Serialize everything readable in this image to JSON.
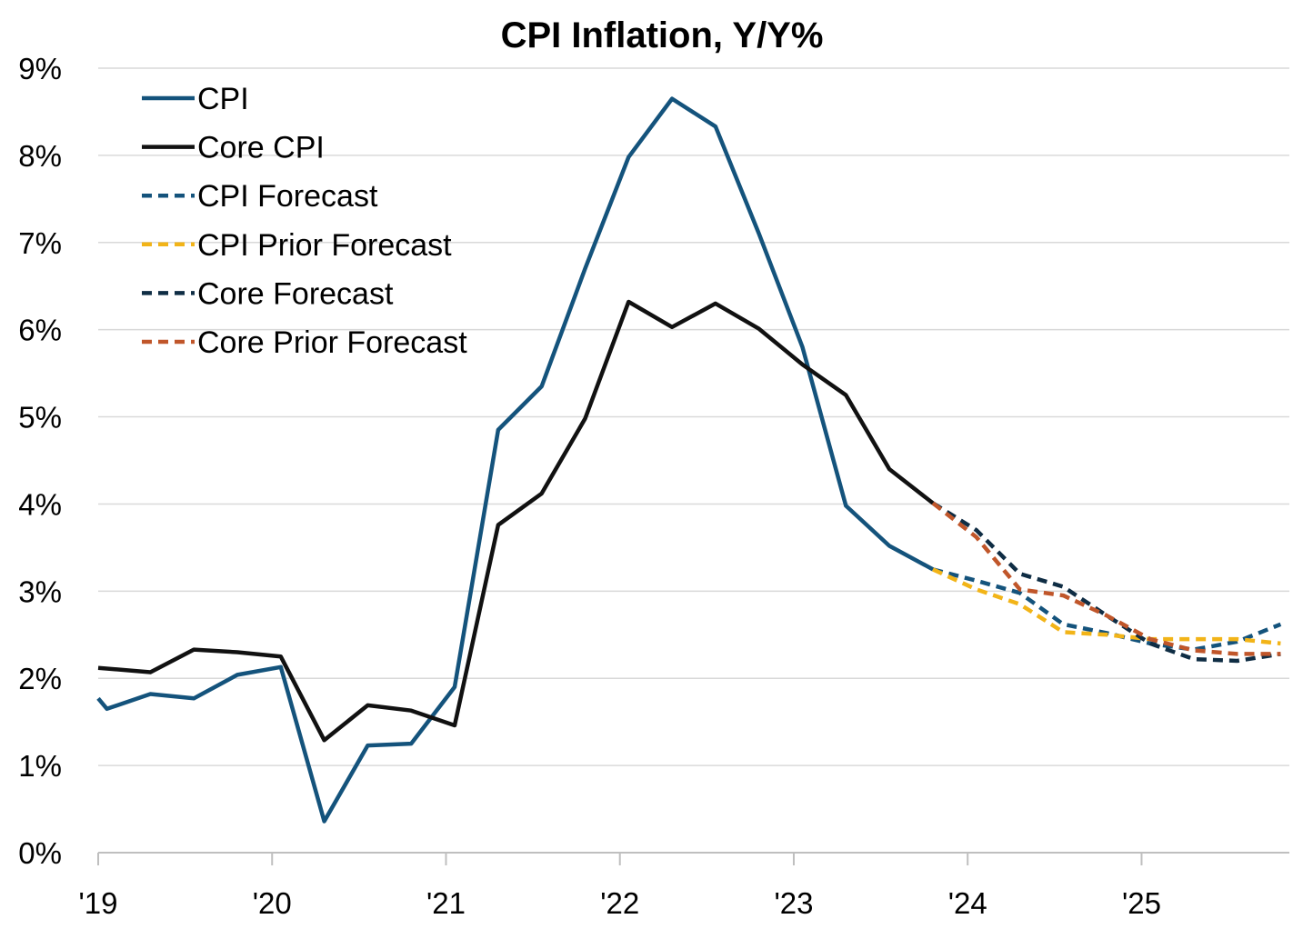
{
  "chart_data": {
    "type": "line",
    "title": "CPI Inflation, Y/Y%",
    "xlabel": "",
    "ylabel": "",
    "xlim": [
      2019.0,
      2025.85
    ],
    "ylim": [
      0,
      9
    ],
    "y_ticks": [
      0,
      1,
      2,
      3,
      4,
      5,
      6,
      7,
      8,
      9
    ],
    "y_tick_labels": [
      "0%",
      "1%",
      "2%",
      "3%",
      "4%",
      "5%",
      "6%",
      "7%",
      "8%",
      "9%"
    ],
    "x_ticks": [
      2019,
      2020,
      2021,
      2022,
      2023,
      2024,
      2025
    ],
    "x_tick_labels": [
      "'19",
      "'20",
      "'21",
      "'22",
      "'23",
      "'24",
      "'25"
    ],
    "grid": "horizontal",
    "legend_position": "top-left",
    "series": [
      {
        "name": "CPI",
        "color": "#14537c",
        "dash": "solid",
        "points": [
          [
            2019.0,
            1.77
          ],
          [
            2019.05,
            1.65
          ],
          [
            2019.3,
            1.82
          ],
          [
            2019.55,
            1.77
          ],
          [
            2019.8,
            2.04
          ],
          [
            2020.05,
            2.13
          ],
          [
            2020.3,
            0.36
          ],
          [
            2020.55,
            1.23
          ],
          [
            2020.8,
            1.25
          ],
          [
            2021.05,
            1.9
          ],
          [
            2021.3,
            4.85
          ],
          [
            2021.55,
            5.35
          ],
          [
            2021.8,
            6.7
          ],
          [
            2022.05,
            7.98
          ],
          [
            2022.3,
            8.65
          ],
          [
            2022.55,
            8.33
          ],
          [
            2022.8,
            7.1
          ],
          [
            2023.05,
            5.8
          ],
          [
            2023.3,
            3.98
          ],
          [
            2023.55,
            3.52
          ],
          [
            2023.8,
            3.25
          ]
        ]
      },
      {
        "name": "Core CPI",
        "color": "#111111",
        "dash": "solid",
        "points": [
          [
            2019.0,
            2.12
          ],
          [
            2019.3,
            2.07
          ],
          [
            2019.55,
            2.33
          ],
          [
            2019.8,
            2.3
          ],
          [
            2020.05,
            2.25
          ],
          [
            2020.3,
            1.29
          ],
          [
            2020.55,
            1.69
          ],
          [
            2020.8,
            1.63
          ],
          [
            2021.05,
            1.46
          ],
          [
            2021.3,
            3.76
          ],
          [
            2021.55,
            4.12
          ],
          [
            2021.8,
            4.98
          ],
          [
            2022.05,
            6.32
          ],
          [
            2022.3,
            6.03
          ],
          [
            2022.55,
            6.3
          ],
          [
            2022.8,
            6.01
          ],
          [
            2023.05,
            5.6
          ],
          [
            2023.3,
            5.25
          ],
          [
            2023.55,
            4.4
          ],
          [
            2023.8,
            4.01
          ]
        ]
      },
      {
        "name": "CPI Forecast",
        "color": "#14537c",
        "dash": "dashed",
        "points": [
          [
            2023.8,
            3.25
          ],
          [
            2024.05,
            3.12
          ],
          [
            2024.3,
            2.98
          ],
          [
            2024.55,
            2.62
          ],
          [
            2024.8,
            2.52
          ],
          [
            2025.05,
            2.4
          ],
          [
            2025.3,
            2.33
          ],
          [
            2025.55,
            2.42
          ],
          [
            2025.8,
            2.62
          ]
        ]
      },
      {
        "name": "CPI Prior Forecast",
        "color": "#f2b418",
        "dash": "dashed",
        "points": [
          [
            2023.8,
            3.25
          ],
          [
            2024.05,
            3.02
          ],
          [
            2024.3,
            2.85
          ],
          [
            2024.55,
            2.53
          ],
          [
            2024.8,
            2.5
          ],
          [
            2025.05,
            2.45
          ],
          [
            2025.3,
            2.45
          ],
          [
            2025.55,
            2.45
          ],
          [
            2025.8,
            2.4
          ]
        ]
      },
      {
        "name": "Core Forecast",
        "color": "#0f2d44",
        "dash": "dashed",
        "points": [
          [
            2023.8,
            4.01
          ],
          [
            2024.05,
            3.7
          ],
          [
            2024.3,
            3.2
          ],
          [
            2024.55,
            3.05
          ],
          [
            2024.8,
            2.72
          ],
          [
            2025.05,
            2.4
          ],
          [
            2025.3,
            2.22
          ],
          [
            2025.55,
            2.2
          ],
          [
            2025.8,
            2.28
          ]
        ]
      },
      {
        "name": "Core Prior Forecast",
        "color": "#c0562a",
        "dash": "dashed",
        "points": [
          [
            2023.8,
            4.01
          ],
          [
            2024.05,
            3.62
          ],
          [
            2024.3,
            3.02
          ],
          [
            2024.55,
            2.95
          ],
          [
            2024.8,
            2.72
          ],
          [
            2025.05,
            2.45
          ],
          [
            2025.3,
            2.32
          ],
          [
            2025.55,
            2.28
          ],
          [
            2025.8,
            2.28
          ]
        ]
      }
    ]
  }
}
